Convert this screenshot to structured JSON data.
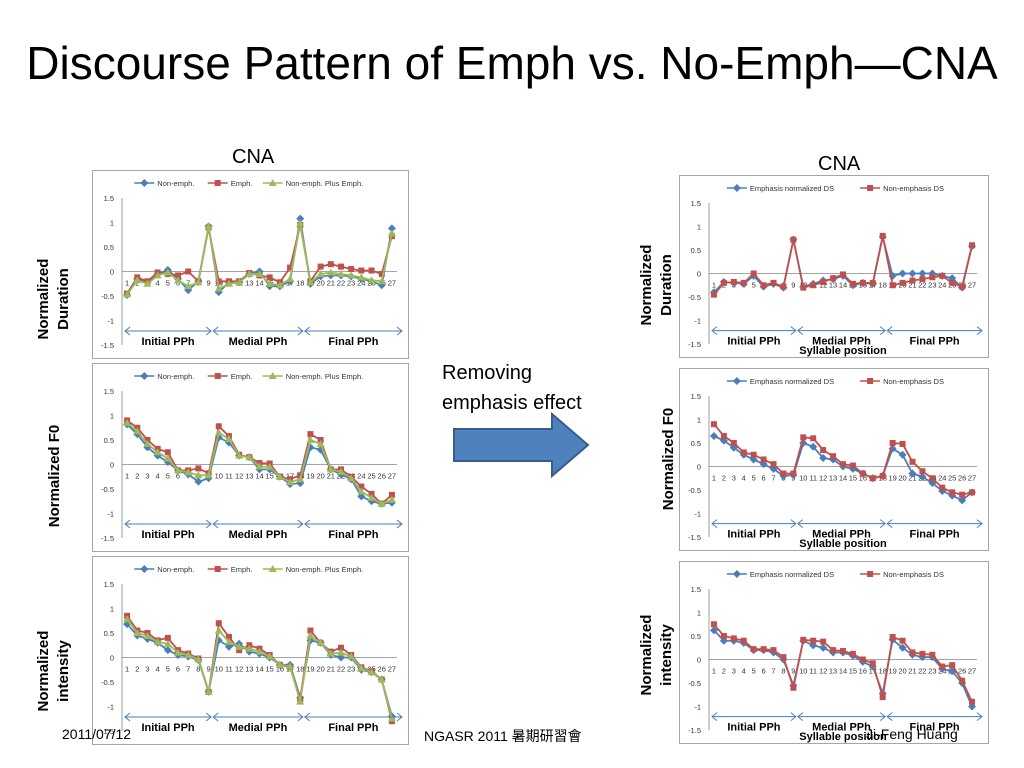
{
  "title": "Discourse Pattern of Emph vs. No-Emph—CNA",
  "left_group_label": "CNA",
  "right_group_label": "CNA",
  "row_labels": [
    [
      "Normalized",
      "Duration"
    ],
    [
      "Normalized F0"
    ],
    [
      "Normalized",
      "intensity"
    ]
  ],
  "arrow_caption": [
    "Removing",
    "emphasis effect"
  ],
  "footer": {
    "date": "2011/07/12",
    "venue": "NGASR 2011 暑期研習會",
    "author": "Ji-Feng Huang"
  },
  "colors": {
    "blue": "#4a7ebb",
    "red": "#c0504d",
    "green": "#9bbb59",
    "arrow": "#4f81bd"
  },
  "chart_data": [
    {
      "id": "left-duration",
      "type": "line",
      "x": [
        "1",
        "2",
        "3",
        "4",
        "5",
        "6",
        "7",
        "8",
        "9",
        "10",
        "11",
        "12",
        "13",
        "14",
        "15",
        "16",
        "17",
        "18",
        "19",
        "20",
        "21",
        "22",
        "23",
        "24",
        "25",
        "26",
        "27"
      ],
      "ylim": [
        -1.5,
        1.5
      ],
      "yticks": [
        "1.5",
        "1",
        "0.5",
        "0",
        "-0.5",
        "-1",
        "-1.5"
      ],
      "phrase_labels": [
        "Initial PPh",
        "Medial PPh",
        "Final PPh"
      ],
      "xlabel": "",
      "series": [
        {
          "name": "Non-emph.",
          "color": "#4a7ebb",
          "marker": "diamond",
          "values": [
            -0.48,
            -0.15,
            -0.22,
            -0.05,
            0.03,
            -0.15,
            -0.38,
            -0.2,
            0.92,
            -0.42,
            -0.22,
            -0.22,
            -0.05,
            0,
            -0.3,
            -0.3,
            -0.2,
            1.08,
            -0.25,
            -0.1,
            -0.08,
            -0.08,
            -0.1,
            -0.15,
            -0.2,
            -0.28,
            0.88
          ]
        },
        {
          "name": "Emph.",
          "color": "#c0504d",
          "marker": "square",
          "values": [
            -0.45,
            -0.12,
            -0.2,
            -0.02,
            -0.05,
            -0.08,
            0.0,
            -0.2,
            0.9,
            -0.2,
            -0.2,
            -0.2,
            -0.03,
            -0.08,
            -0.12,
            -0.22,
            0.08,
            0.95,
            -0.2,
            0.1,
            0.15,
            0.1,
            0.05,
            0.02,
            0.02,
            -0.05,
            0.72
          ]
        },
        {
          "name": "Non-emph. Plus Emph.",
          "color": "#9bbb59",
          "marker": "triangle",
          "values": [
            -0.47,
            -0.18,
            -0.25,
            -0.08,
            -0.02,
            -0.18,
            -0.3,
            -0.22,
            0.92,
            -0.35,
            -0.25,
            -0.22,
            -0.05,
            -0.05,
            -0.25,
            -0.28,
            -0.15,
            0.98,
            -0.22,
            -0.05,
            -0.02,
            -0.05,
            -0.08,
            -0.12,
            -0.18,
            -0.2,
            0.78
          ]
        }
      ]
    },
    {
      "id": "left-f0",
      "type": "line",
      "x": [
        "1",
        "2",
        "3",
        "4",
        "5",
        "6",
        "7",
        "8",
        "9",
        "10",
        "11",
        "12",
        "13",
        "14",
        "15",
        "16",
        "17",
        "18",
        "19",
        "20",
        "21",
        "22",
        "23",
        "24",
        "25",
        "26",
        "27"
      ],
      "ylim": [
        -1.5,
        1.5
      ],
      "yticks": [
        "1.5",
        "1",
        "0.5",
        "0",
        "-0.5",
        "-1",
        "-1.5"
      ],
      "phrase_labels": [
        "Initial PPh",
        "Medial PPh",
        "Final PPh"
      ],
      "xlabel": "",
      "series": [
        {
          "name": "Non-emph.",
          "color": "#4a7ebb",
          "marker": "diamond",
          "values": [
            0.82,
            0.62,
            0.35,
            0.18,
            0.05,
            -0.12,
            -0.2,
            -0.35,
            -0.28,
            0.55,
            0.45,
            0.18,
            0.15,
            -0.1,
            -0.1,
            -0.25,
            -0.4,
            -0.38,
            0.35,
            0.3,
            -0.1,
            -0.2,
            -0.3,
            -0.65,
            -0.75,
            -0.8,
            -0.78
          ]
        },
        {
          "name": "Emph.",
          "color": "#c0504d",
          "marker": "square",
          "values": [
            0.9,
            0.75,
            0.5,
            0.32,
            0.25,
            -0.12,
            -0.12,
            -0.08,
            -0.18,
            0.78,
            0.58,
            0.2,
            0.15,
            0.03,
            0.02,
            -0.25,
            -0.3,
            -0.22,
            0.62,
            0.5,
            -0.1,
            -0.1,
            -0.25,
            -0.45,
            -0.6,
            -0.8,
            -0.62
          ]
        },
        {
          "name": "Non-emph. Plus Emph.",
          "color": "#9bbb59",
          "marker": "triangle",
          "values": [
            0.85,
            0.68,
            0.42,
            0.25,
            0.12,
            -0.12,
            -0.16,
            -0.22,
            -0.22,
            0.65,
            0.52,
            0.18,
            0.15,
            -0.04,
            -0.05,
            -0.25,
            -0.36,
            -0.3,
            0.5,
            0.42,
            -0.1,
            -0.15,
            -0.28,
            -0.55,
            -0.68,
            -0.8,
            -0.72
          ]
        }
      ]
    },
    {
      "id": "left-intensity",
      "type": "line",
      "x": [
        "1",
        "2",
        "3",
        "4",
        "5",
        "6",
        "7",
        "8",
        "9",
        "10",
        "11",
        "12",
        "13",
        "14",
        "15",
        "16",
        "17",
        "18",
        "19",
        "20",
        "21",
        "22",
        "23",
        "24",
        "25",
        "26",
        "27"
      ],
      "ylim": [
        -1.5,
        1.5
      ],
      "yticks": [
        "1.5",
        "1",
        "0.5",
        "0",
        "-0.5",
        "-1",
        "-1.5"
      ],
      "phrase_labels": [
        "Initial PPh",
        "Medial PPh",
        "Final PPh"
      ],
      "xlabel": "",
      "series": [
        {
          "name": "Non-emph.",
          "color": "#4a7ebb",
          "marker": "diamond",
          "values": [
            0.68,
            0.45,
            0.38,
            0.3,
            0.15,
            0.05,
            0.02,
            -0.05,
            -0.7,
            0.35,
            0.22,
            0.28,
            0.12,
            0.08,
            0.0,
            -0.15,
            -0.15,
            -0.82,
            0.35,
            0.3,
            0.05,
            0.0,
            0.0,
            -0.25,
            -0.3,
            -0.45,
            -1.2
          ]
        },
        {
          "name": "Emph.",
          "color": "#c0504d",
          "marker": "square",
          "values": [
            0.85,
            0.55,
            0.5,
            0.35,
            0.4,
            0.15,
            0.08,
            -0.02,
            -0.7,
            0.7,
            0.42,
            0.15,
            0.25,
            0.18,
            0.05,
            -0.15,
            -0.2,
            -0.85,
            0.55,
            0.3,
            0.12,
            0.2,
            0.05,
            -0.2,
            -0.28,
            -0.45,
            -1.3
          ]
        },
        {
          "name": "Non-emph. Plus Emph.",
          "color": "#9bbb59",
          "marker": "triangle",
          "values": [
            0.78,
            0.5,
            0.44,
            0.32,
            0.28,
            0.1,
            0.05,
            -0.04,
            -0.7,
            0.55,
            0.32,
            0.22,
            0.18,
            0.12,
            0.02,
            -0.15,
            -0.18,
            -0.9,
            0.45,
            0.3,
            0.08,
            0.1,
            0.02,
            -0.22,
            -0.3,
            -0.45,
            -1.25
          ]
        }
      ]
    },
    {
      "id": "right-duration",
      "type": "line",
      "x": [
        "1",
        "2",
        "3",
        "4",
        "5",
        "6",
        "7",
        "8",
        "9",
        "10",
        "11",
        "12",
        "13",
        "14",
        "15",
        "16",
        "17",
        "18",
        "19",
        "20",
        "21",
        "22",
        "23",
        "24",
        "25",
        "26",
        "27"
      ],
      "ylim": [
        -1.5,
        1.5
      ],
      "yticks": [
        "1.5",
        "1",
        "0.5",
        "0",
        "-0.5",
        "-1",
        "-1.5"
      ],
      "phrase_labels": [
        "Initial PPh",
        "Medial PPh",
        "Final PPh"
      ],
      "xlabel": "Syllable position",
      "series": [
        {
          "name": "Emphasis normalized DS",
          "color": "#4a7ebb",
          "marker": "diamond",
          "values": [
            -0.4,
            -0.18,
            -0.2,
            -0.22,
            -0.05,
            -0.28,
            -0.22,
            -0.3,
            0.72,
            -0.28,
            -0.22,
            -0.15,
            -0.12,
            -0.05,
            -0.25,
            -0.2,
            -0.22,
            0.78,
            -0.05,
            0.0,
            0.0,
            0.0,
            0.0,
            -0.05,
            -0.1,
            -0.3,
            0.58
          ]
        },
        {
          "name": "Non-emphasis DS",
          "color": "#c0504d",
          "marker": "square",
          "values": [
            -0.45,
            -0.2,
            -0.18,
            -0.2,
            0.0,
            -0.25,
            -0.2,
            -0.28,
            0.72,
            -0.3,
            -0.25,
            -0.18,
            -0.1,
            -0.02,
            -0.22,
            -0.2,
            -0.2,
            0.8,
            -0.25,
            -0.2,
            -0.15,
            -0.12,
            -0.08,
            -0.05,
            -0.2,
            -0.28,
            0.6
          ]
        }
      ]
    },
    {
      "id": "right-f0",
      "type": "line",
      "x": [
        "1",
        "2",
        "3",
        "4",
        "5",
        "6",
        "7",
        "8",
        "9",
        "10",
        "11",
        "12",
        "13",
        "14",
        "15",
        "16",
        "17",
        "18",
        "19",
        "20",
        "21",
        "22",
        "23",
        "24",
        "25",
        "26",
        "27"
      ],
      "ylim": [
        -1.5,
        1.5
      ],
      "yticks": [
        "1.5",
        "1",
        "0.5",
        "0",
        "-0.5",
        "-1",
        "-1.5"
      ],
      "phrase_labels": [
        "Initial PPh",
        "Medial PPh",
        "Final PPh"
      ],
      "xlabel": "Syllable position",
      "series": [
        {
          "name": "Emphasis normalized DS",
          "color": "#4a7ebb",
          "marker": "diamond",
          "values": [
            0.65,
            0.55,
            0.4,
            0.25,
            0.15,
            0.05,
            -0.05,
            -0.2,
            -0.18,
            0.5,
            0.42,
            0.18,
            0.15,
            0.0,
            -0.05,
            -0.15,
            -0.25,
            -0.2,
            0.38,
            0.25,
            -0.15,
            -0.22,
            -0.35,
            -0.52,
            -0.62,
            -0.72,
            -0.55
          ]
        },
        {
          "name": "Non-emphasis DS",
          "color": "#c0504d",
          "marker": "square",
          "values": [
            0.9,
            0.65,
            0.5,
            0.3,
            0.25,
            0.15,
            0.05,
            -0.15,
            -0.15,
            0.62,
            0.6,
            0.35,
            0.22,
            0.05,
            0.02,
            -0.15,
            -0.25,
            -0.2,
            0.5,
            0.48,
            0.1,
            -0.1,
            -0.25,
            -0.45,
            -0.55,
            -0.6,
            -0.55
          ]
        }
      ]
    },
    {
      "id": "right-intensity",
      "type": "line",
      "x": [
        "1",
        "2",
        "3",
        "4",
        "5",
        "6",
        "7",
        "8",
        "9",
        "10",
        "11",
        "12",
        "13",
        "14",
        "15",
        "16",
        "17",
        "18",
        "19",
        "20",
        "21",
        "22",
        "23",
        "24",
        "25",
        "26",
        "27"
      ],
      "ylim": [
        -1.5,
        1.5
      ],
      "yticks": [
        "1.5",
        "1",
        "0.5",
        "0",
        "-0.5",
        "-1",
        "-1.5"
      ],
      "phrase_labels": [
        "Initial PPh",
        "Medial PPh",
        "Final PPh"
      ],
      "xlabel": "Syllable position",
      "series": [
        {
          "name": "Emphasis normalized DS",
          "color": "#4a7ebb",
          "marker": "diamond",
          "values": [
            0.62,
            0.4,
            0.4,
            0.35,
            0.2,
            0.2,
            0.15,
            0.0,
            -0.55,
            0.4,
            0.3,
            0.25,
            0.15,
            0.15,
            0.08,
            -0.05,
            -0.15,
            -0.72,
            0.42,
            0.25,
            0.1,
            0.05,
            0.05,
            -0.2,
            -0.25,
            -0.5,
            -1.0
          ]
        },
        {
          "name": "Non-emphasis DS",
          "color": "#c0504d",
          "marker": "square",
          "values": [
            0.75,
            0.5,
            0.45,
            0.4,
            0.22,
            0.22,
            0.2,
            0.05,
            -0.6,
            0.42,
            0.4,
            0.38,
            0.2,
            0.18,
            0.12,
            0.0,
            -0.08,
            -0.8,
            0.48,
            0.4,
            0.15,
            0.12,
            0.1,
            -0.15,
            -0.12,
            -0.45,
            -0.9
          ]
        }
      ]
    }
  ]
}
